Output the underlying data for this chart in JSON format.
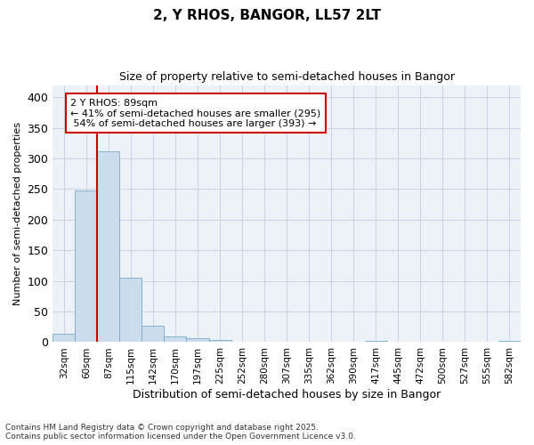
{
  "title": "2, Y RHOS, BANGOR, LL57 2LT",
  "subtitle": "Size of property relative to semi-detached houses in Bangor",
  "xlabel": "Distribution of semi-detached houses by size in Bangor",
  "ylabel": "Number of semi-detached properties",
  "categories": [
    "32sqm",
    "60sqm",
    "87sqm",
    "115sqm",
    "142sqm",
    "170sqm",
    "197sqm",
    "225sqm",
    "252sqm",
    "280sqm",
    "307sqm",
    "335sqm",
    "362sqm",
    "390sqm",
    "417sqm",
    "445sqm",
    "472sqm",
    "500sqm",
    "527sqm",
    "555sqm",
    "582sqm"
  ],
  "values": [
    14,
    248,
    312,
    106,
    27,
    9,
    6,
    4,
    0,
    0,
    0,
    0,
    0,
    0,
    2,
    0,
    0,
    0,
    0,
    0,
    2
  ],
  "bar_color": "#ccdcec",
  "bar_edge_color": "#7aaac8",
  "grid_color": "#c8d4e0",
  "property_line_x": 2.0,
  "property_value": "89sqm",
  "pct_smaller": 41,
  "count_smaller": 295,
  "pct_larger": 54,
  "count_larger": 393,
  "annotation_box_color": "#cc0000",
  "ylim": [
    0,
    420
  ],
  "yticks": [
    0,
    50,
    100,
    150,
    200,
    250,
    300,
    350,
    400
  ],
  "footer": "Contains HM Land Registry data © Crown copyright and database right 2025.\nContains public sector information licensed under the Open Government Licence v3.0.",
  "background_color": "#edf2f8"
}
